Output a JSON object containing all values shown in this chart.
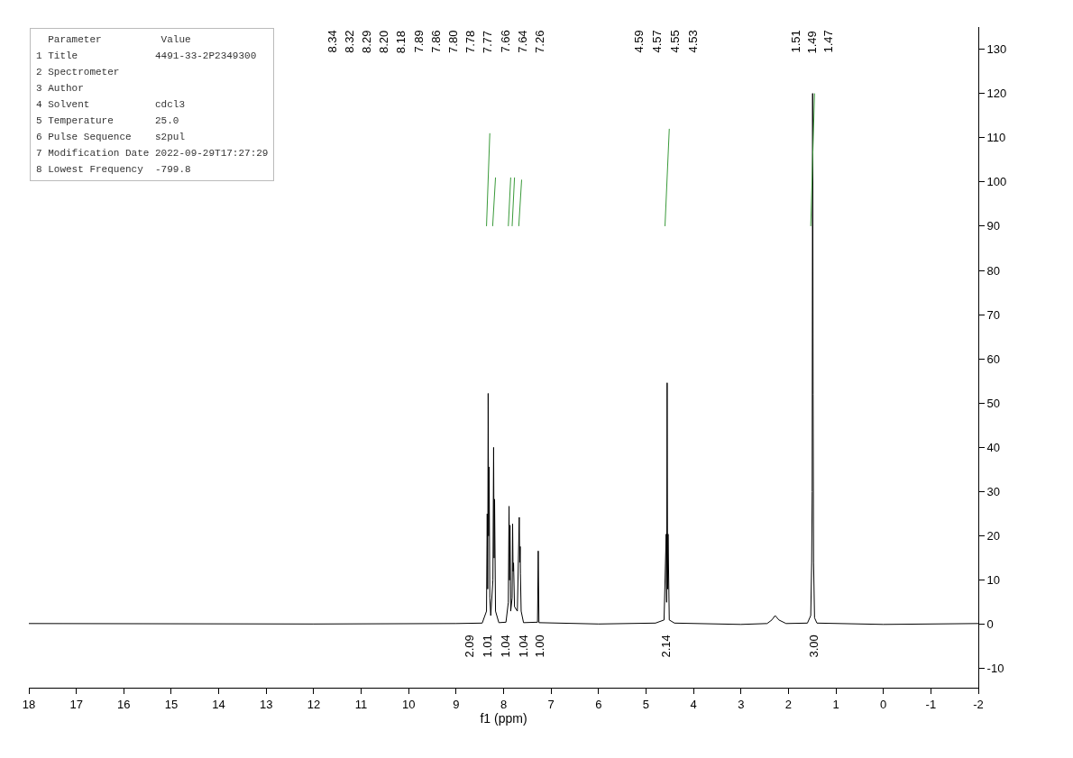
{
  "chart_data": {
    "type": "line",
    "xlabel": "f1 (ppm)",
    "xlim": [
      18,
      -2
    ],
    "xticks": [
      18,
      17,
      16,
      15,
      14,
      13,
      12,
      11,
      10,
      9,
      8,
      7,
      6,
      5,
      4,
      3,
      2,
      1,
      0,
      -1,
      -2
    ],
    "ylim": [
      -14.3,
      135
    ],
    "yticks": [
      -10,
      0,
      10,
      20,
      30,
      40,
      50,
      60,
      70,
      80,
      90,
      100,
      110,
      120,
      130
    ],
    "grid": false,
    "marker": "none",
    "line_style": "solid",
    "series": [
      {
        "color": "#000000",
        "x": [
          18,
          12,
          9,
          8.45,
          8.36,
          8.345,
          8.335,
          8.325,
          8.315,
          8.305,
          8.29,
          8.27,
          8.225,
          8.21,
          8.2,
          8.19,
          8.17,
          8.1,
          7.95,
          7.9,
          7.885,
          7.875,
          7.865,
          7.85,
          7.82,
          7.81,
          7.8,
          7.79,
          7.77,
          7.71,
          7.67,
          7.66,
          7.65,
          7.645,
          7.63,
          7.58,
          7.285,
          7.27,
          7.255,
          6,
          4.8,
          4.62,
          4.575,
          4.565,
          4.555,
          4.545,
          4.535,
          4.51,
          4.4,
          3,
          2.45,
          2.35,
          2.28,
          2.2,
          2.05,
          1.6,
          1.53,
          1.51,
          1.5,
          1.49,
          1.48,
          1.47,
          1.45,
          1.4,
          0,
          -2
        ],
        "values": [
          0.2,
          0.1,
          0.2,
          0.3,
          3,
          25,
          8,
          52.2,
          20,
          35.6,
          6,
          2,
          10,
          40,
          15,
          28.3,
          3,
          0.4,
          0.5,
          5,
          26.7,
          10,
          22.4,
          3,
          6,
          22.7,
          12,
          13.9,
          4,
          3,
          24.2,
          14,
          17.6,
          11.4,
          3,
          0.4,
          0.5,
          16.6,
          0.4,
          0.1,
          0.3,
          1,
          20.4,
          5,
          54.6,
          8,
          20.4,
          1,
          0.3,
          0,
          0.2,
          1,
          2,
          1,
          0.2,
          0.3,
          2,
          14,
          30,
          120,
          52,
          14,
          1.5,
          0.3,
          0,
          0.2
        ]
      },
      {
        "color": "#3a9a3a",
        "x": [
          8.36,
          8.29
        ],
        "values": [
          90,
          111
        ]
      },
      {
        "color": "#3a9a3a",
        "x": [
          8.23,
          8.17
        ],
        "values": [
          90,
          101
        ]
      },
      {
        "color": "#3a9a3a",
        "x": [
          7.9,
          7.85
        ],
        "values": [
          90,
          101
        ]
      },
      {
        "color": "#3a9a3a",
        "x": [
          7.82,
          7.77
        ],
        "values": [
          90,
          101
        ]
      },
      {
        "color": "#3a9a3a",
        "x": [
          7.68,
          7.62
        ],
        "values": [
          90,
          100.5
        ]
      },
      {
        "color": "#3a9a3a",
        "x": [
          4.6,
          4.51
        ],
        "values": [
          90,
          112
        ]
      },
      {
        "color": "#3a9a3a",
        "x": [
          1.53,
          1.45
        ],
        "values": [
          90,
          120
        ]
      }
    ],
    "annotations": [
      "  Parameter          Value",
      "1 Title             4491-33-2P2349300",
      "2 Spectrometer",
      "3 Author",
      "4 Solvent           cdcl3",
      "5 Temperature       25.0",
      "6 Pulse Sequence    s2pul",
      "7 Modification Date 2022-09-29T17:27:29",
      "8 Lowest Frequency  -799.8",
      "8.34",
      "8.32",
      "8.29",
      "8.20",
      "8.18",
      "7.89",
      "7.86",
      "7.80",
      "7.78",
      "7.77",
      "7.66",
      "7.64",
      "7.26",
      "4.59",
      "4.57",
      "4.55",
      "4.53",
      "1.51",
      "1.49",
      "1.47",
      "2.09",
      "1.01",
      "1.04",
      "1.04",
      "1.00",
      "2.14",
      "3.00"
    ]
  }
}
